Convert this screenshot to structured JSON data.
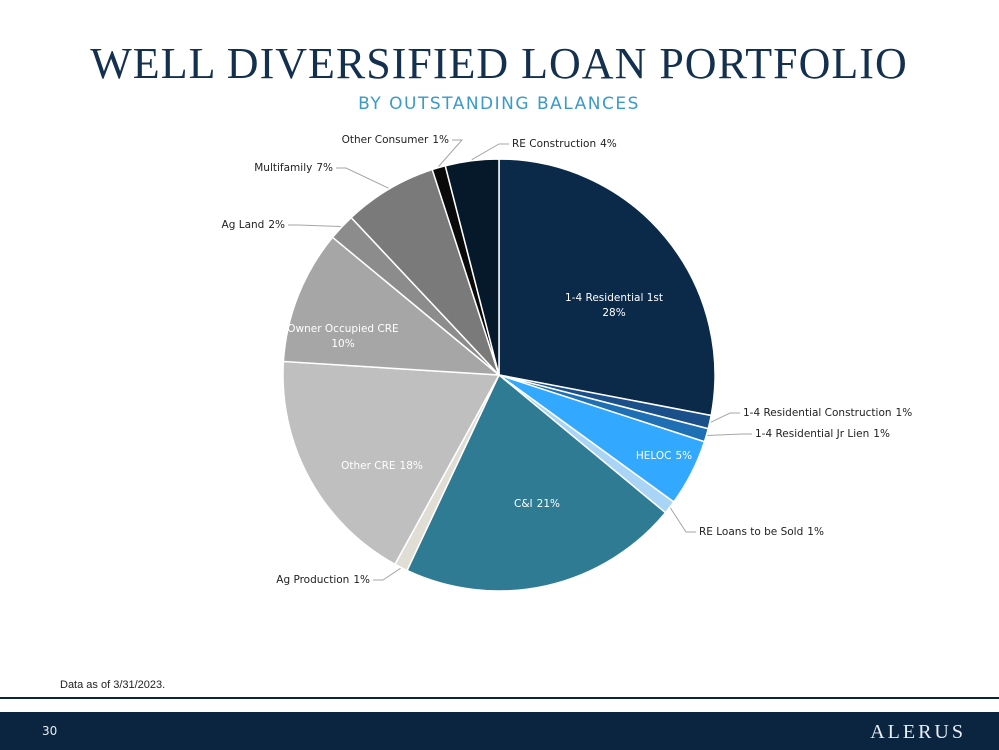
{
  "chart_data": {
    "type": "pie",
    "title": "WELL DIVERSIFIED LOAN PORTFOLIO",
    "subtitle": "BY OUTSTANDING BALANCES",
    "categories": [
      "1-4 Residential 1st",
      "1-4 Residential Construction",
      "1-4 Residential Jr Lien",
      "HELOC",
      "RE Loans to be Sold",
      "C&I",
      "Ag Production",
      "Other CRE",
      "Owner Occupied CRE",
      "Ag Land",
      "Multifamily",
      "Other Consumer",
      "RE Construction"
    ],
    "values": [
      28,
      1,
      1,
      5,
      1,
      21,
      1,
      18,
      10,
      2,
      7,
      1,
      4
    ],
    "value_labels": [
      "28%",
      "1%",
      "1%",
      "5%",
      "1%",
      "21%",
      "1%",
      "18%",
      "10%",
      "2%",
      "7%",
      "1%",
      "4%"
    ],
    "colors": [
      "#0b2a4a",
      "#1a4f8a",
      "#1f6fb5",
      "#33a8ff",
      "#a9d4f5",
      "#2e7b93",
      "#e0ddd5",
      "#bfbfbf",
      "#a6a6a6",
      "#8c8c8c",
      "#7a7a7a",
      "#0a0a0a",
      "#06192b"
    ]
  },
  "footnote": "Data as of 3/31/2023.",
  "page_number": "30",
  "logo": "ALERUS"
}
